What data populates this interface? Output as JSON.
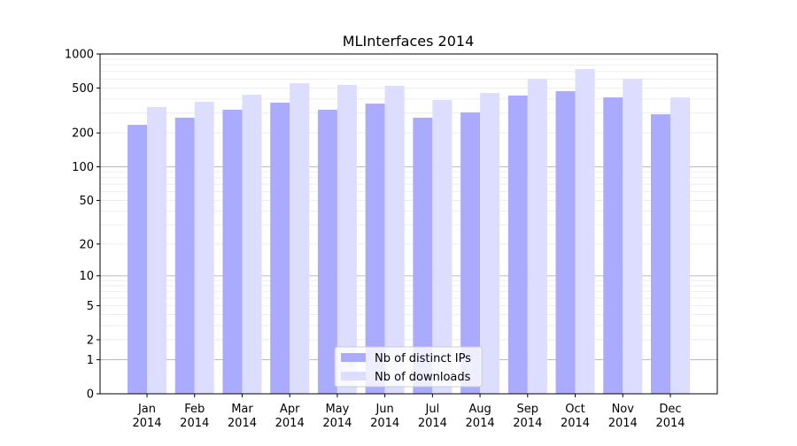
{
  "chart_data": {
    "type": "bar",
    "title": "MLInterfaces 2014",
    "xlabel": "",
    "ylabel": "",
    "y_scale": "log(y+1)",
    "ylim": [
      0,
      1000
    ],
    "y_ticks": [
      0,
      1,
      2,
      5,
      10,
      20,
      50,
      100,
      200,
      500,
      1000
    ],
    "grid": true,
    "legend_position": "bottom-center",
    "categories": [
      "Jan\n2014",
      "Feb\n2014",
      "Mar\n2014",
      "Apr\n2014",
      "May\n2014",
      "Jun\n2014",
      "Jul\n2014",
      "Aug\n2014",
      "Sep\n2014",
      "Oct\n2014",
      "Nov\n2014",
      "Dec\n2014"
    ],
    "series": [
      {
        "name": "Nb of distinct IPs",
        "color": "#aaaaff",
        "values": [
          236,
          273,
          321,
          371,
          321,
          364,
          273,
          304,
          429,
          469,
          413,
          293
        ]
      },
      {
        "name": "Nb of downloads",
        "color": "#ddddff",
        "values": [
          340,
          378,
          436,
          551,
          533,
          523,
          392,
          452,
          603,
          736,
          603,
          413
        ]
      }
    ]
  }
}
